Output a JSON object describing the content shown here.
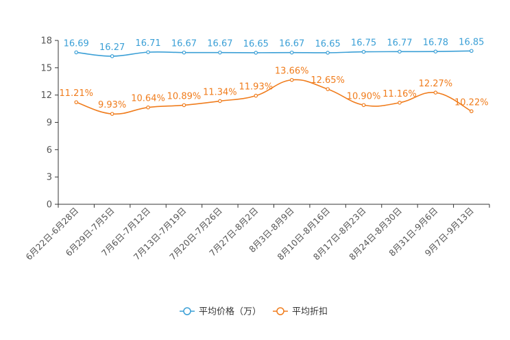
{
  "chart_data": {
    "type": "line",
    "title": "",
    "xlabel": "",
    "ylabel": "",
    "ylim": [
      0,
      18
    ],
    "yticks": [
      0,
      3,
      6,
      9,
      12,
      15,
      18
    ],
    "categories": [
      "6月22日-6月28日",
      "6月29日-7月5日",
      "7月6日-7月12日",
      "7月13日-7月19日",
      "7月20日-7月26日",
      "7月27日-8月2日",
      "8月3日-8月9日",
      "8月10日-8月16日",
      "8月17日-8月23日",
      "8月24日-8月30日",
      "8月31日-9月6日",
      "9月7日-9月13日"
    ],
    "series": [
      {
        "name": "平均价格（万）",
        "color": "#3a9fd6",
        "values": [
          16.69,
          16.27,
          16.71,
          16.67,
          16.67,
          16.65,
          16.67,
          16.65,
          16.75,
          16.77,
          16.78,
          16.85
        ],
        "labels": [
          "16.69",
          "16.27",
          "16.71",
          "16.67",
          "16.67",
          "16.65",
          "16.67",
          "16.65",
          "16.75",
          "16.77",
          "16.78",
          "16.85"
        ]
      },
      {
        "name": "平均折扣",
        "color": "#f07c1c",
        "values": [
          11.21,
          9.93,
          10.64,
          10.89,
          11.34,
          11.93,
          13.66,
          12.65,
          10.9,
          11.16,
          12.27,
          10.22
        ],
        "labels": [
          "11.21%",
          "9.93%",
          "10.64%",
          "10.89%",
          "11.34%",
          "11.93%",
          "13.66%",
          "12.65%",
          "10.90%",
          "11.16%",
          "12.27%",
          "10.22%"
        ]
      }
    ],
    "legend_position": "bottom-center",
    "grid": false
  }
}
